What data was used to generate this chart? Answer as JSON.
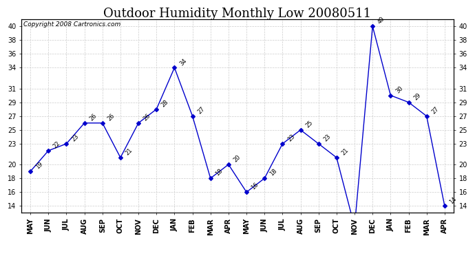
{
  "title": "Outdoor Humidity Monthly Low 20080511",
  "copyright": "Copyright 2008 Cartronics.com",
  "months": [
    "MAY",
    "JUN",
    "JUL",
    "AUG",
    "SEP",
    "OCT",
    "NOV",
    "DEC",
    "JAN",
    "FEB",
    "MAR",
    "APR",
    "MAY",
    "JUN",
    "JUL",
    "AUG",
    "SEP",
    "OCT",
    "NOV",
    "DEC",
    "JAN",
    "FEB",
    "MAR",
    "APR"
  ],
  "values": [
    19,
    22,
    23,
    26,
    26,
    21,
    26,
    28,
    34,
    27,
    18,
    20,
    16,
    18,
    23,
    25,
    23,
    21,
    11,
    40,
    30,
    29,
    27,
    14
  ],
  "line_color": "#0000cc",
  "marker": "D",
  "marker_size": 3,
  "ylim": [
    13,
    41
  ],
  "yticks_left": [
    14,
    16,
    18,
    20,
    23,
    25,
    27,
    29,
    31,
    34,
    36,
    38,
    40
  ],
  "grid_color": "#cccccc",
  "bg_color": "#ffffff",
  "title_fontsize": 13,
  "label_fontsize": 7,
  "copyright_fontsize": 6.5,
  "annot_fontsize": 6
}
